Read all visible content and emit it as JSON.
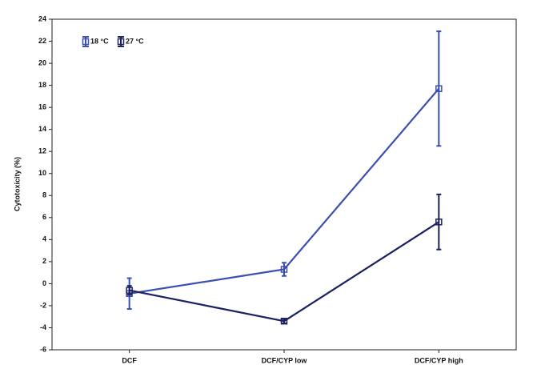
{
  "chart_data": {
    "type": "line",
    "y_label": "Cytotoxicity (%)",
    "categories": [
      "DCF",
      "DCF/CYP low",
      "DCF/CYP high"
    ],
    "series": [
      {
        "name": "18 °C",
        "color": "#3a4fb5",
        "values": [
          -0.9,
          1.3,
          17.7
        ],
        "errors": [
          1.4,
          0.6,
          5.2
        ]
      },
      {
        "name": "27 °C",
        "color": "#1b2160",
        "values": [
          -0.6,
          -3.4,
          5.6
        ],
        "errors": [
          0.4,
          0.2,
          2.5
        ]
      }
    ],
    "ylim": [
      -6,
      24
    ],
    "yticks": [
      -6,
      -4,
      -2,
      0,
      2,
      4,
      6,
      8,
      10,
      12,
      14,
      16,
      18,
      20,
      22,
      24
    ],
    "legend": "upper-left",
    "grid": false
  }
}
